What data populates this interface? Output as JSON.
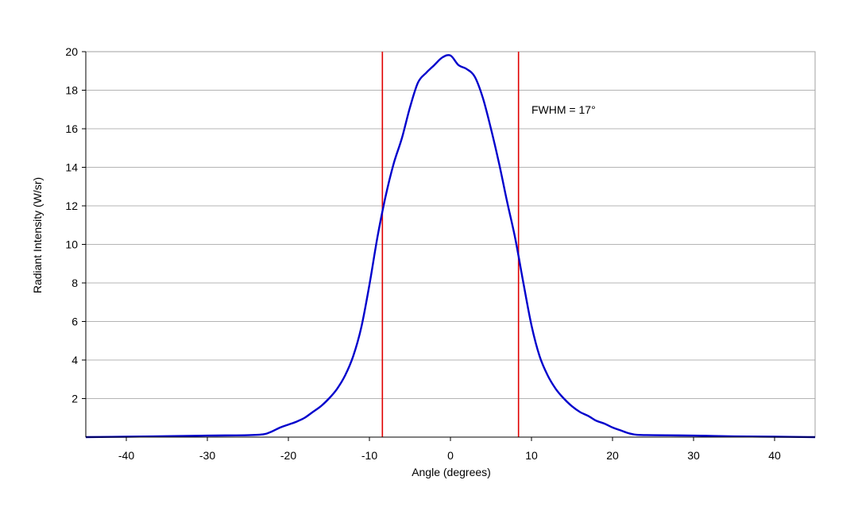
{
  "chart_data": {
    "type": "line",
    "title": "",
    "xlabel": "Angle (degrees)",
    "ylabel": "Radiant Intensity (W/sr)",
    "xlim": [
      -45,
      45
    ],
    "ylim": [
      0,
      20
    ],
    "xticks": [
      -40,
      -30,
      -20,
      -10,
      0,
      10,
      20,
      30,
      40
    ],
    "yticks": [
      2,
      4,
      6,
      8,
      10,
      12,
      14,
      16,
      18,
      20
    ],
    "grid": {
      "horizontal": true,
      "vertical": false
    },
    "legend": "none",
    "annotation": {
      "text": "FWHM = 17°",
      "x": 10,
      "y": 17
    },
    "vlines": [
      {
        "x": -8.4,
        "color": "#e00000"
      },
      {
        "x": 8.4,
        "color": "#e00000"
      }
    ],
    "series": [
      {
        "color": "#0000cc",
        "x": [
          -45,
          -40,
          -35,
          -30,
          -25,
          -23,
          -22,
          -21,
          -20,
          -19,
          -18,
          -17,
          -16,
          -15,
          -14,
          -13,
          -12,
          -11,
          -10,
          -9,
          -8,
          -7,
          -6,
          -5,
          -4,
          -3,
          -2,
          -1,
          0,
          1,
          2,
          3,
          4,
          5,
          6,
          7,
          8,
          9,
          10,
          11,
          12,
          13,
          14,
          15,
          16,
          17,
          18,
          19,
          20,
          21,
          22,
          23,
          25,
          30,
          35,
          40,
          45
        ],
        "y": [
          0.0,
          0.02,
          0.05,
          0.08,
          0.1,
          0.15,
          0.3,
          0.5,
          0.65,
          0.8,
          1.0,
          1.3,
          1.6,
          2.0,
          2.5,
          3.2,
          4.2,
          5.7,
          7.9,
          10.4,
          12.5,
          14.2,
          15.5,
          17.1,
          18.4,
          18.9,
          19.3,
          19.7,
          19.8,
          19.3,
          19.1,
          18.7,
          17.6,
          16.0,
          14.2,
          12.2,
          10.3,
          8.0,
          5.8,
          4.2,
          3.2,
          2.5,
          2.0,
          1.6,
          1.3,
          1.1,
          0.85,
          0.7,
          0.5,
          0.35,
          0.2,
          0.12,
          0.1,
          0.08,
          0.04,
          0.02,
          0.0
        ]
      }
    ]
  }
}
